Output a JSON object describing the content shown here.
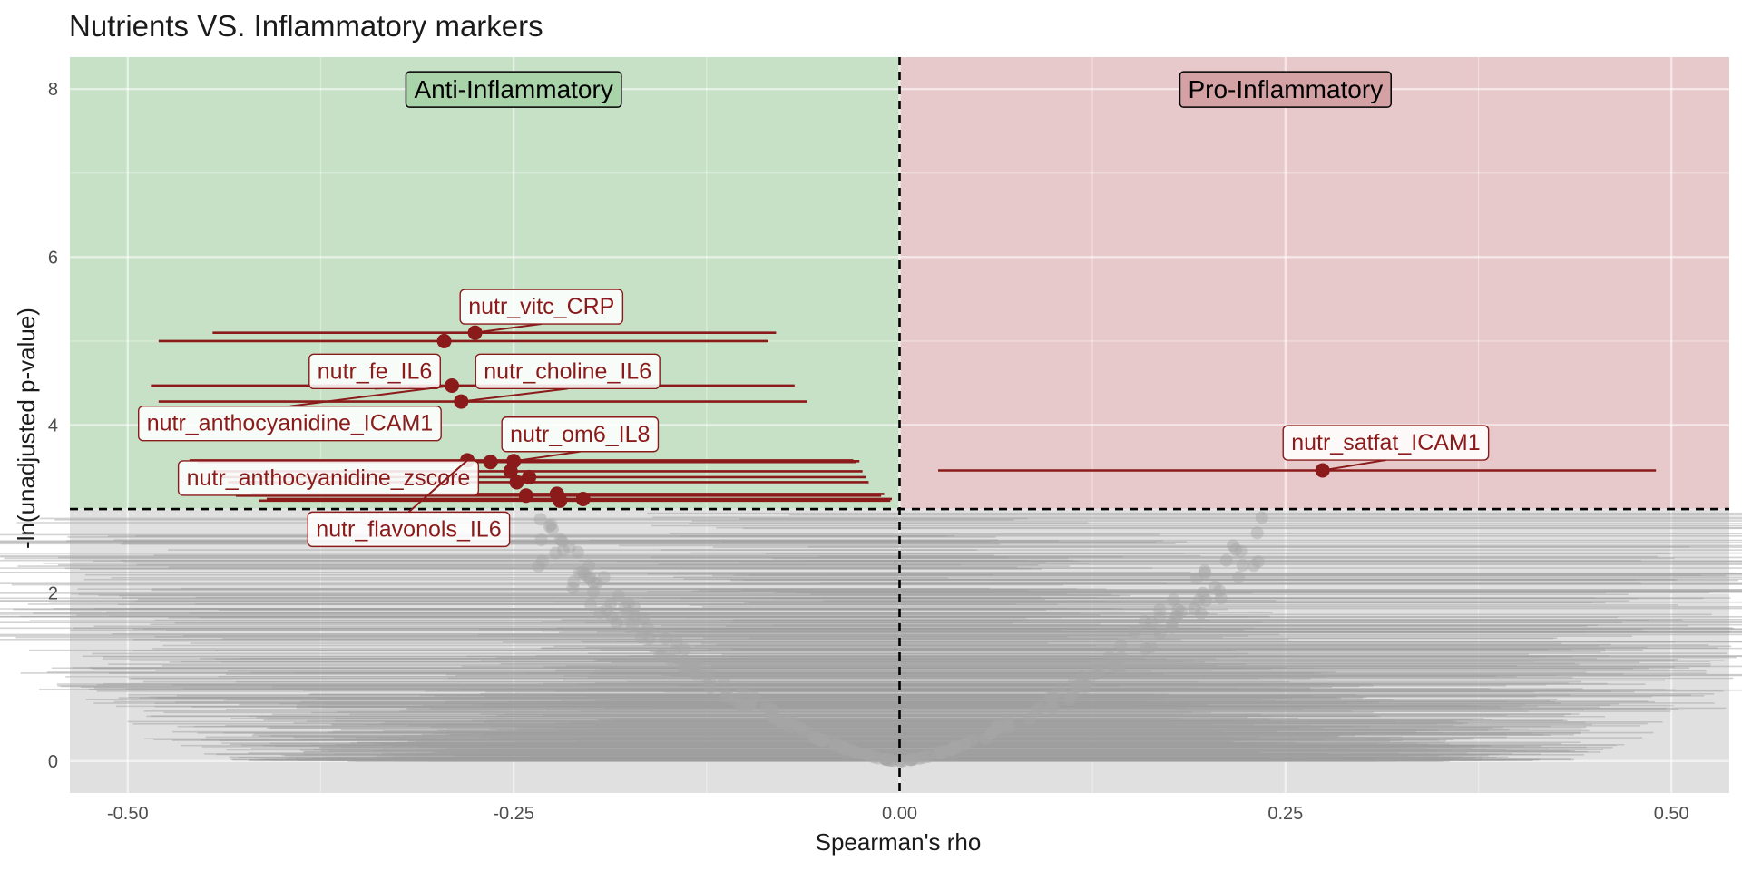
{
  "chart_data": {
    "type": "scatter",
    "title": "Nutrients VS. Inflammatory markers",
    "xlabel": "Spearman's rho",
    "ylabel": "-ln(unadjusted p-value)",
    "xlim": [
      -0.5375,
      0.5375
    ],
    "ylim": [
      -0.38,
      8.38
    ],
    "xticks": [
      -0.5,
      -0.25,
      0.0,
      0.25,
      0.5
    ],
    "xtick_labels": [
      "-0.50",
      "-0.25",
      "0.00",
      "0.25",
      "0.50"
    ],
    "yticks": [
      0,
      2,
      4,
      6,
      8
    ],
    "ytick_labels": [
      "0",
      "2",
      "4",
      "6",
      "8"
    ],
    "threshold_y": 3.0,
    "threshold_x": 0.0,
    "grid": true,
    "regions": {
      "anti": {
        "label": "Anti-Inflammatory",
        "fill": "#c6e1c6",
        "box_fill": "#a9d3a9"
      },
      "pro": {
        "label": "Pro-Inflammatory",
        "fill": "#e8c9cb",
        "box_fill": "#d4a2a5"
      },
      "background": "#e0e0e0"
    },
    "colors": {
      "significant": "#8b1a1a",
      "nonsignificant": "#999999"
    },
    "significant": [
      {
        "x": -0.275,
        "y": 5.1,
        "lo": -0.445,
        "hi": -0.08
      },
      {
        "x": -0.295,
        "y": 5.0,
        "lo": -0.48,
        "hi": -0.085
      },
      {
        "x": -0.29,
        "y": 4.47,
        "lo": -0.485,
        "hi": -0.068
      },
      {
        "x": -0.284,
        "y": 4.28,
        "lo": -0.48,
        "hi": -0.06
      },
      {
        "x": -0.28,
        "y": 3.58,
        "lo": -0.46,
        "hi": -0.03
      },
      {
        "x": -0.265,
        "y": 3.56,
        "lo": -0.455,
        "hi": -0.028
      },
      {
        "x": -0.25,
        "y": 3.57,
        "lo": -0.45,
        "hi": -0.026
      },
      {
        "x": -0.252,
        "y": 3.45,
        "lo": -0.445,
        "hi": -0.024
      },
      {
        "x": -0.24,
        "y": 3.38,
        "lo": -0.44,
        "hi": -0.022
      },
      {
        "x": -0.248,
        "y": 3.32,
        "lo": -0.435,
        "hi": -0.02
      },
      {
        "x": -0.242,
        "y": 3.16,
        "lo": -0.43,
        "hi": -0.012
      },
      {
        "x": -0.222,
        "y": 3.18,
        "lo": -0.42,
        "hi": -0.01
      },
      {
        "x": -0.22,
        "y": 3.1,
        "lo": -0.415,
        "hi": -0.006
      },
      {
        "x": -0.205,
        "y": 3.12,
        "lo": -0.41,
        "hi": -0.005
      },
      {
        "x": 0.274,
        "y": 3.46,
        "lo": 0.025,
        "hi": 0.49
      }
    ],
    "labels": [
      {
        "text": "nutr_vitc_CRP",
        "x": -0.232,
        "y": 5.42,
        "px": -0.275,
        "py": 5.1
      },
      {
        "text": "nutr_fe_IL6",
        "x": -0.34,
        "y": 4.65,
        "px": -0.29,
        "py": 4.47
      },
      {
        "text": "nutr_choline_IL6",
        "x": -0.215,
        "y": 4.65,
        "px": -0.284,
        "py": 4.28
      },
      {
        "text": "nutr_anthocyanidine_ICAM1",
        "x": -0.395,
        "y": 4.03,
        "px": -0.29,
        "py": 4.47
      },
      {
        "text": "nutr_om6_IL8",
        "x": -0.207,
        "y": 3.9,
        "px": -0.25,
        "py": 3.57
      },
      {
        "text": "nutr_anthocyanidine_zscore",
        "x": -0.37,
        "y": 3.38,
        "px": -0.265,
        "py": 3.56
      },
      {
        "text": "nutr_flavonols_IL6",
        "x": -0.318,
        "y": 2.77,
        "px": -0.28,
        "py": 3.58
      },
      {
        "text": "nutr_satfat_ICAM1",
        "x": 0.315,
        "y": 3.8,
        "px": 0.274,
        "py": 3.46
      }
    ]
  }
}
